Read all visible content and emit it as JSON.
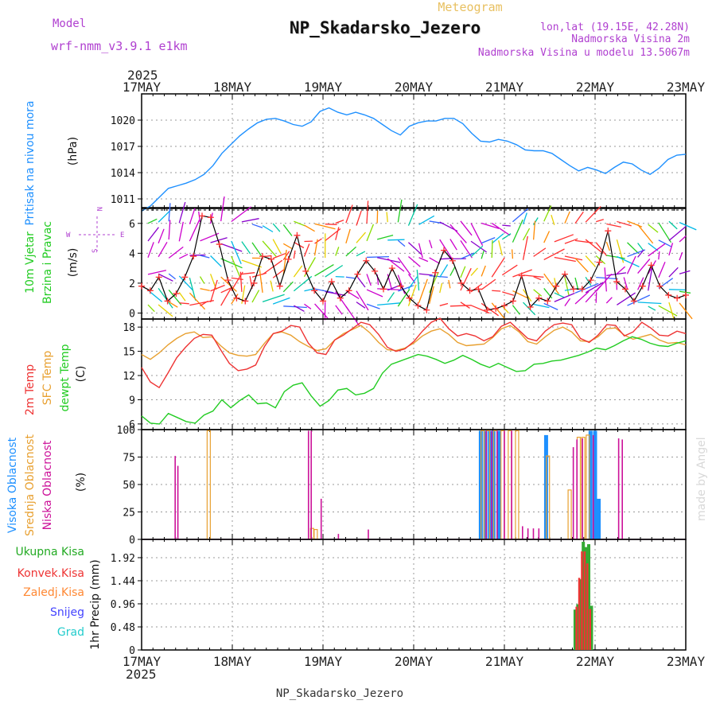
{
  "header": {
    "chart_kind": "Meteogram",
    "station": "NP_Skadarsko_Jezero",
    "model_label": "Model",
    "model_name": "wrf-nmm_v3.9.1 e1km",
    "lonlat": "lon,lat (19.15E, 42.28N)",
    "elevation": "Nadmorska Visina 2m",
    "model_elevation": "Nadmorska Visina u modelu 13.5067m",
    "credit": "made by Angel",
    "footer": "NP_Skadarsko_Jezero"
  },
  "time_axis": {
    "year": "2025",
    "ticks": [
      "17MAY",
      "18MAY",
      "19MAY",
      "20MAY",
      "21MAY",
      "22MAY",
      "23MAY"
    ]
  },
  "wind_legend": {
    "w": "W",
    "e": "E",
    "n": "N",
    "s": "S"
  },
  "colors": {
    "pressure": "#1e90ff",
    "wind_speed": "#000000",
    "wind_marker": "#ff3030",
    "t2m": "#ee3333",
    "sfc": "#e8a030",
    "dewpt": "#22cc22",
    "high_cloud": "#1e90ff",
    "mid_cloud": "#e8a030",
    "low_cloud": "#cc1199",
    "total_precip": "#33aa33",
    "conv_precip": "#ee3333",
    "frz": "#ff8833",
    "snow": "#4444ff",
    "hail": "#22cccc"
  },
  "chart_data": [
    {
      "type": "line",
      "panel": "pressure",
      "ylabel_main": "Pritisak na nivou mora",
      "ylabel_unit": "(hPa)",
      "yticks": [
        "1011",
        "1014",
        "1017",
        "1020"
      ],
      "ylim": [
        1010,
        1023
      ],
      "x_unit": "days since 17MAY 00Z",
      "series": [
        {
          "values": [
            1009.6,
            1010.2,
            1011.2,
            1012.2,
            1012.5,
            1012.8,
            1013.2,
            1013.8,
            1014.8,
            1016.2,
            1017.2,
            1018.2,
            1019.0,
            1019.7,
            1020.1,
            1020.2,
            1019.9,
            1019.5,
            1019.3,
            1019.8,
            1021.0,
            1021.4,
            1020.9,
            1020.6,
            1020.9,
            1020.6,
            1020.2,
            1019.5,
            1018.8,
            1018.3,
            1019.3,
            1019.7,
            1019.9,
            1019.9,
            1020.2,
            1020.2,
            1019.6,
            1018.5,
            1017.6,
            1017.5,
            1017.8,
            1017.6,
            1017.2,
            1016.6,
            1016.5,
            1016.5,
            1016.2,
            1015.5,
            1014.8,
            1014.2,
            1014.6,
            1014.3,
            1013.9,
            1014.6,
            1015.2,
            1015.0,
            1014.3,
            1013.8,
            1014.5,
            1015.5,
            1016.0,
            1016.1
          ]
        }
      ]
    },
    {
      "type": "line",
      "panel": "wind",
      "ylabel_main": "10m Vjetar",
      "ylabel_sub": "Brzina i Pravac",
      "ylabel_unit": "(m/s)",
      "yticks": [
        "0",
        "2",
        "4",
        "6"
      ],
      "ylim": [
        -0.4,
        7.0
      ],
      "series": [
        {
          "values": [
            1.8,
            1.5,
            2.4,
            0.8,
            1.3,
            2.4,
            3.8,
            6.5,
            6.4,
            4.6,
            2.2,
            1.0,
            0.8,
            2.0,
            3.8,
            3.6,
            1.8,
            3.6,
            5.2,
            2.8,
            1.5,
            0.8,
            2.1,
            1.0,
            1.5,
            2.6,
            3.5,
            2.8,
            1.6,
            3.0,
            1.8,
            1.0,
            0.5,
            0.2,
            2.7,
            4.2,
            3.5,
            2.0,
            1.5,
            1.6,
            0.2,
            0.3,
            0.5,
            0.8,
            2.5,
            0.4,
            1.0,
            0.8,
            1.8,
            2.6,
            1.6,
            1.6,
            2.2,
            3.4,
            5.5,
            2.1,
            1.6,
            0.8,
            1.8,
            3.2,
            1.8,
            1.2,
            1.0,
            1.2
          ]
        }
      ]
    },
    {
      "type": "line",
      "panel": "temperature",
      "ylabel_t2m": "2m Temp",
      "ylabel_sfc": "SFC Temp",
      "ylabel_dew": "dewpt Temp",
      "ylabel_unit": "(C)",
      "yticks": [
        "6",
        "9",
        "12",
        "15",
        "18"
      ],
      "ylim": [
        5.3,
        19.0
      ],
      "series": [
        {
          "values": [
            13.0,
            11.2,
            10.5,
            12.3,
            14.2,
            15.5,
            16.6,
            17.1,
            17.0,
            15.2,
            13.5,
            12.6,
            12.8,
            13.3,
            15.6,
            17.2,
            17.5,
            18.2,
            18.0,
            16.0,
            14.8,
            14.6,
            16.4,
            17.0,
            17.8,
            18.6,
            18.3,
            17.1,
            15.5,
            15.0,
            15.3,
            16.2,
            17.5,
            18.6,
            19.1,
            17.8,
            16.9,
            17.2,
            16.9,
            16.3,
            16.8,
            18.1,
            18.6,
            17.6,
            16.6,
            16.3,
            17.5,
            18.3,
            18.5,
            18.3,
            16.6,
            16.1,
            17.0,
            18.3,
            18.2,
            16.9,
            17.4,
            18.6,
            17.9,
            17.0,
            16.9,
            17.5,
            17.2
          ]
        },
        {
          "values": [
            14.6,
            14.0,
            14.8,
            15.8,
            16.6,
            17.2,
            17.4,
            16.7,
            16.8,
            15.7,
            14.8,
            14.5,
            14.4,
            14.6,
            16.0,
            17.2,
            17.4,
            17.0,
            16.2,
            15.6,
            15.1,
            15.3,
            16.4,
            17.2,
            17.7,
            18.2,
            17.3,
            16.1,
            15.2,
            15.1,
            15.4,
            16.0,
            16.9,
            17.5,
            17.8,
            17.1,
            16.1,
            15.7,
            15.8,
            15.9,
            16.7,
            17.8,
            18.2,
            17.4,
            16.2,
            15.9,
            16.8,
            17.6,
            18.0,
            17.4,
            16.3,
            16.2,
            16.8,
            17.8,
            17.9,
            17.0,
            16.5,
            16.8,
            17.1,
            16.4,
            16.0,
            16.1,
            15.8
          ]
        },
        {
          "values": [
            7.0,
            6.1,
            6.0,
            7.3,
            6.8,
            6.3,
            6.1,
            7.1,
            7.6,
            9.0,
            8.0,
            8.9,
            9.6,
            8.5,
            8.6,
            8.0,
            10.0,
            10.8,
            11.1,
            9.5,
            8.2,
            8.9,
            10.2,
            10.4,
            9.6,
            9.8,
            10.4,
            12.3,
            13.4,
            13.8,
            14.2,
            14.6,
            14.4,
            14.0,
            13.5,
            13.9,
            14.5,
            14.0,
            13.4,
            13.0,
            13.5,
            13.0,
            12.5,
            12.6,
            13.4,
            13.5,
            13.8,
            13.9,
            14.2,
            14.5,
            14.9,
            15.4,
            15.2,
            15.7,
            16.3,
            16.8,
            16.5,
            16.0,
            15.7,
            15.6,
            16.0,
            16.3
          ]
        }
      ]
    },
    {
      "type": "bar",
      "panel": "clouds",
      "ylabel_high": "Visoka Oblacnost",
      "ylabel_mid": "Srednja Oblacnost",
      "ylabel_low": "Niska Oblacnost",
      "ylabel_unit": "(%)",
      "yticks": [
        "0",
        "25",
        "50",
        "75",
        "100"
      ],
      "ylim": [
        0,
        100
      ],
      "series": [
        {
          "name": "Visoka",
          "points": [
            {
              "x": 3.74,
              "v": 99
            },
            {
              "x": 3.79,
              "v": 99
            },
            {
              "x": 3.84,
              "v": 99
            },
            {
              "x": 3.88,
              "v": 99
            },
            {
              "x": 3.94,
              "v": 99
            },
            {
              "x": 4.46,
              "v": 95
            },
            {
              "x": 4.95,
              "v": 99
            },
            {
              "x": 5.0,
              "v": 99
            },
            {
              "x": 5.04,
              "v": 37
            }
          ]
        },
        {
          "name": "Srednja",
          "points": [
            {
              "x": 0.74,
              "v": 99
            },
            {
              "x": 1.88,
              "v": 10
            },
            {
              "x": 1.92,
              "v": 9
            },
            {
              "x": 3.76,
              "v": 99
            },
            {
              "x": 3.82,
              "v": 99
            },
            {
              "x": 3.9,
              "v": 99
            },
            {
              "x": 3.98,
              "v": 99
            },
            {
              "x": 4.06,
              "v": 99
            },
            {
              "x": 4.14,
              "v": 99
            },
            {
              "x": 4.48,
              "v": 76
            },
            {
              "x": 4.72,
              "v": 45
            },
            {
              "x": 4.82,
              "v": 93
            },
            {
              "x": 4.87,
              "v": 93
            },
            {
              "x": 4.92,
              "v": 95
            }
          ]
        },
        {
          "name": "Niska",
          "points": [
            {
              "x": 0.37,
              "v": 76
            },
            {
              "x": 0.4,
              "v": 67
            },
            {
              "x": 1.84,
              "v": 99
            },
            {
              "x": 1.87,
              "v": 99
            },
            {
              "x": 1.98,
              "v": 37
            },
            {
              "x": 2.17,
              "v": 5
            },
            {
              "x": 2.5,
              "v": 9
            },
            {
              "x": 3.8,
              "v": 99
            },
            {
              "x": 3.86,
              "v": 99
            },
            {
              "x": 3.92,
              "v": 99
            },
            {
              "x": 4.0,
              "v": 99
            },
            {
              "x": 4.08,
              "v": 99
            },
            {
              "x": 4.2,
              "v": 12
            },
            {
              "x": 4.26,
              "v": 10
            },
            {
              "x": 4.32,
              "v": 10
            },
            {
              "x": 4.38,
              "v": 10
            },
            {
              "x": 4.76,
              "v": 84
            },
            {
              "x": 4.8,
              "v": 91
            },
            {
              "x": 4.86,
              "v": 92
            },
            {
              "x": 4.98,
              "v": 95
            },
            {
              "x": 5.26,
              "v": 92
            },
            {
              "x": 5.3,
              "v": 91
            }
          ]
        }
      ]
    },
    {
      "type": "bar",
      "panel": "precipitation",
      "ylabel_total": "Ukupna Kisa",
      "ylabel_conv": "Konvek.Kisa",
      "ylabel_frz": "Zaledj.Kisa",
      "ylabel_snow": "Snijeg",
      "ylabel_hail": "Grad",
      "ylabel_unit": "1hr Precip (mm)",
      "yticks": [
        "0",
        "0.48",
        "0.96",
        "1.44",
        "1.92"
      ],
      "ylim": [
        0,
        2.3
      ],
      "series": [
        {
          "name": "Ukupna Kisa",
          "points": [
            {
              "x": 4.78,
              "v": 0.84
            },
            {
              "x": 4.81,
              "v": 0.95
            },
            {
              "x": 4.84,
              "v": 1.47
            },
            {
              "x": 4.87,
              "v": 2.25
            },
            {
              "x": 4.9,
              "v": 2.14
            },
            {
              "x": 4.93,
              "v": 2.2
            },
            {
              "x": 4.96,
              "v": 0.92
            }
          ]
        },
        {
          "name": "Konvek.Kisa",
          "points": [
            {
              "x": 4.795,
              "v": 0.9
            },
            {
              "x": 4.825,
              "v": 1.5
            },
            {
              "x": 4.855,
              "v": 2.05
            },
            {
              "x": 4.885,
              "v": 2.05
            },
            {
              "x": 4.915,
              "v": 1.8
            },
            {
              "x": 4.945,
              "v": 0.85
            }
          ]
        }
      ]
    }
  ]
}
